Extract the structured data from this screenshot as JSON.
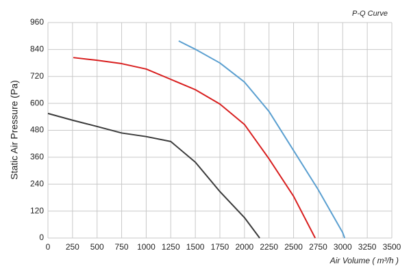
{
  "chart_data": {
    "type": "line",
    "title": "P-Q Curve",
    "x_label": "Air Volume ( m³/h )",
    "y_label": "Static Air Pressure  (Pa)",
    "xlim": [
      0,
      3500
    ],
    "ylim": [
      0,
      960
    ],
    "xticks": [
      0,
      250,
      500,
      750,
      1000,
      1250,
      1500,
      1750,
      2000,
      2250,
      2500,
      2750,
      3000,
      3250,
      3500
    ],
    "yticks": [
      0,
      120,
      240,
      360,
      480,
      600,
      720,
      840,
      960
    ],
    "grid": true,
    "series": [
      {
        "color": "#3a3a3a",
        "x": [
          0,
          250,
          500,
          750,
          1000,
          1250,
          1500,
          1750,
          2000,
          2155
        ],
        "values": [
          555,
          525,
          497,
          468,
          452,
          430,
          338,
          207,
          91,
          0
        ]
      },
      {
        "color": "#d81e1e",
        "x": [
          258,
          500,
          750,
          1000,
          1250,
          1500,
          1750,
          2000,
          2250,
          2500,
          2720
        ],
        "values": [
          804,
          792,
          777,
          753,
          707,
          661,
          597,
          506,
          353,
          186,
          0
        ]
      },
      {
        "color": "#5a9fd0",
        "x": [
          1331,
          1500,
          1750,
          2000,
          2250,
          2500,
          2750,
          3000,
          3020
        ],
        "values": [
          878,
          841,
          780,
          695,
          564,
          390,
          216,
          24,
          0
        ]
      }
    ]
  }
}
